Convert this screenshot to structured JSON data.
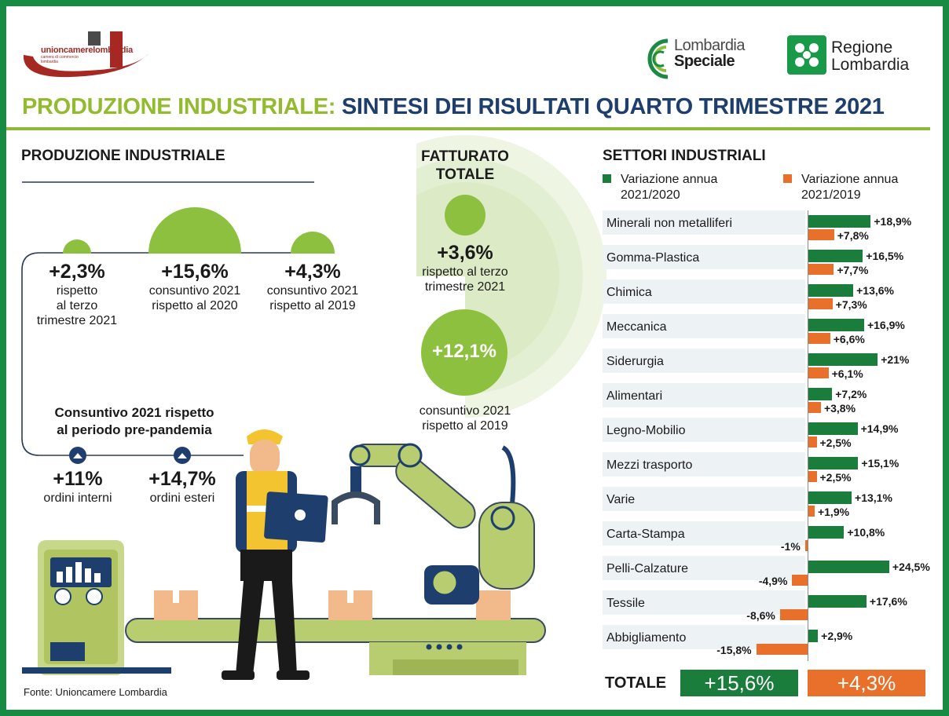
{
  "header": {
    "brand_left": "unioncamerelombardia",
    "brand_left_sub": "camera di commercio lombardia",
    "brand_mid_line1": "Lombardia",
    "brand_mid_line2": "Speciale",
    "brand_right_line1": "Regione",
    "brand_right_line2": "Lombardia"
  },
  "title": {
    "part1": "PRODUZIONE INDUSTRIALE:",
    "part2": "SINTESI DEI RISULTATI QUARTO TRIMESTRE 2021"
  },
  "produzione": {
    "heading": "PRODUZIONE INDUSTRIALE",
    "items": [
      {
        "value": "+2,3%",
        "desc_lines": [
          "rispetto",
          "al terzo",
          "trimestre 2021"
        ]
      },
      {
        "value": "+15,6%",
        "desc_lines": [
          "consuntivo 2021",
          "rispetto al 2020"
        ]
      },
      {
        "value": "+4,3%",
        "desc_lines": [
          "consuntivo 2021",
          "rispetto al 2019"
        ]
      }
    ],
    "prepandemia_heading_lines": [
      "Consuntivo 2021 rispetto",
      "al periodo pre-pandemia"
    ],
    "orders": [
      {
        "value": "+11%",
        "desc": "ordini interni"
      },
      {
        "value": "+14,7%",
        "desc": "ordini esteri"
      }
    ]
  },
  "fatturato": {
    "heading_lines": [
      "FATTURATO",
      "TOTALE"
    ],
    "q_value": "+3,6%",
    "q_desc_lines": [
      "rispetto al terzo",
      "trimestre 2021"
    ],
    "y_value": "+12,1%",
    "y_desc_lines": [
      "consuntivo 2021",
      "rispetto al 2019"
    ]
  },
  "settori": {
    "heading": "SETTORI INDUSTRIALI",
    "legend": [
      {
        "label_lines": [
          "Variazione annua",
          "2021/2020"
        ],
        "color": "#1b7d3c"
      },
      {
        "label_lines": [
          "Variazione annua",
          "2021/2019"
        ],
        "color": "#e8702a"
      }
    ],
    "total_label": "TOTALE",
    "total_2020": "+15,6%",
    "total_2019": "+4,3%"
  },
  "chart_data": {
    "type": "bar",
    "orientation": "horizontal",
    "categories": [
      "Minerali non metalliferi",
      "Gomma-Plastica",
      "Chimica",
      "Meccanica",
      "Siderurgia",
      "Alimentari",
      "Legno-Mobilio",
      "Mezzi trasporto",
      "Varie",
      "Carta-Stampa",
      "Pelli-Calzature",
      "Tessile",
      "Abbigliamento"
    ],
    "series": [
      {
        "name": "Variazione annua 2021/2020",
        "color": "#1b7d3c",
        "values": [
          18.9,
          16.5,
          13.6,
          16.9,
          21,
          7.2,
          14.9,
          15.1,
          13.1,
          10.8,
          24.5,
          17.6,
          2.9
        ],
        "labels": [
          "+18,9%",
          "+16,5%",
          "+13,6%",
          "+16,9%",
          "+21%",
          "+7,2%",
          "+14,9%",
          "+15,1%",
          "+13,1%",
          "+10,8%",
          "+24,5%",
          "+17,6%",
          "+2,9%"
        ]
      },
      {
        "name": "Variazione annua 2021/2019",
        "color": "#e8702a",
        "values": [
          7.8,
          7.7,
          7.3,
          6.6,
          6.1,
          3.8,
          2.5,
          2.5,
          1.9,
          -1,
          -4.9,
          -8.6,
          -15.8
        ],
        "labels": [
          "+7,8%",
          "+7,7%",
          "+7,3%",
          "+6,6%",
          "+6,1%",
          "+3,8%",
          "+2,5%",
          "+2,5%",
          "+1,9%",
          "-1%",
          "-4,9%",
          "-8,6%",
          "-15,8%"
        ]
      }
    ]
  },
  "footer": {
    "source": "Fonte: Unioncamere Lombardia"
  }
}
